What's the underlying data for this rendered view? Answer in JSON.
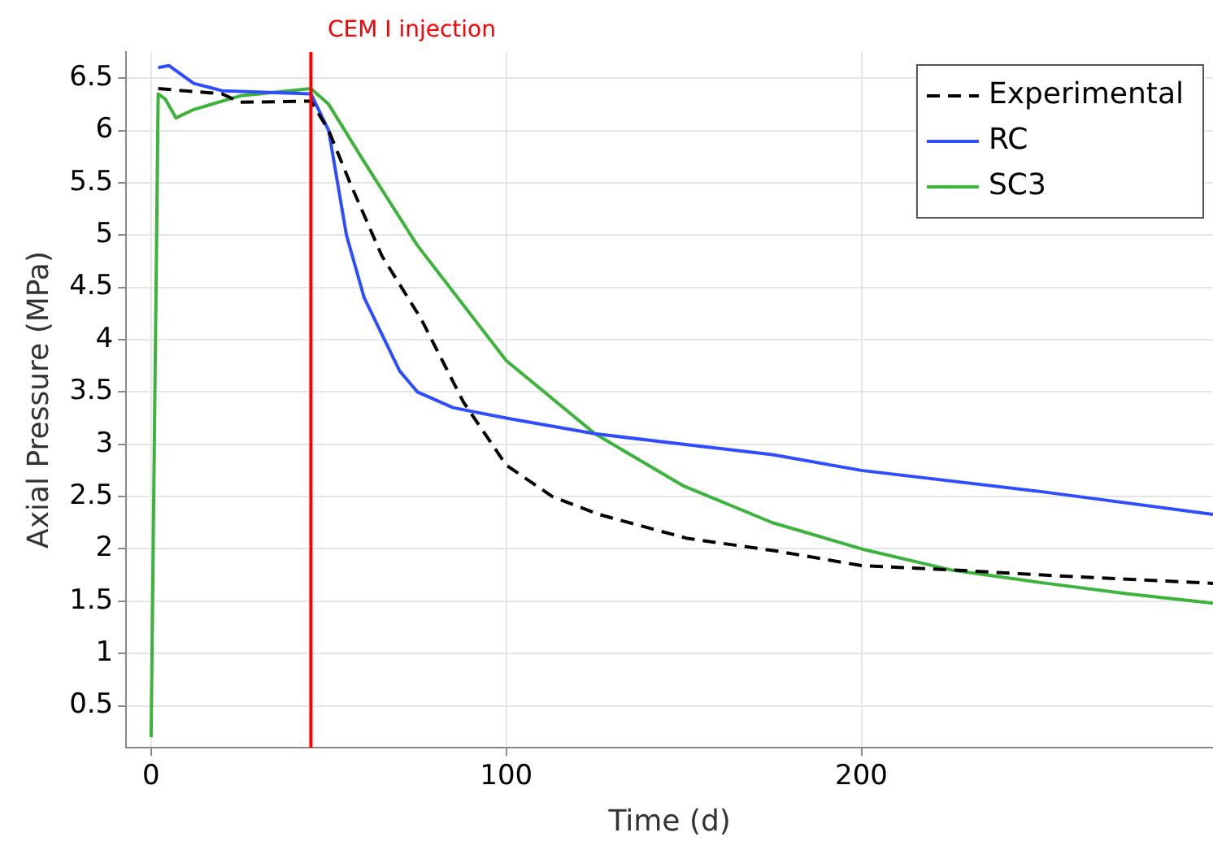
{
  "chart_data": {
    "type": "line",
    "xlabel": "Time (d)",
    "ylabel": "Axial Pressure (MPa)",
    "xlim": [
      -7,
      299
    ],
    "ylim": [
      0.1,
      6.75
    ],
    "xticks": [
      0,
      100,
      200
    ],
    "yticks": [
      0.5,
      1,
      1.5,
      2,
      2.5,
      3,
      3.5,
      4,
      4.5,
      5,
      5.5,
      6,
      6.5
    ],
    "grid": true,
    "legend": "top right",
    "marker": "none",
    "ref_lines": [
      {
        "axis": "x",
        "value": 45,
        "label": "CEM I injection",
        "color": "#ff0000"
      }
    ],
    "series": [
      {
        "name": "Experimental",
        "color": "#000000",
        "line_style": "dashed",
        "x": [
          2,
          20,
          25,
          45,
          50,
          56,
          65,
          76,
          88,
          100,
          113,
          126,
          151,
          176,
          200,
          225,
          251,
          299
        ],
        "values": [
          6.4,
          6.35,
          6.27,
          6.28,
          6.0,
          5.5,
          4.8,
          4.2,
          3.4,
          2.8,
          2.5,
          2.33,
          2.1,
          1.98,
          1.84,
          1.8,
          1.75,
          1.67
        ]
      },
      {
        "name": "RC",
        "color": "#2e4dff",
        "line_style": "solid",
        "x": [
          2,
          5,
          12,
          20,
          45,
          50,
          55,
          60,
          70,
          75,
          85,
          100,
          125,
          150,
          175,
          200,
          250,
          299
        ],
        "values": [
          6.6,
          6.62,
          6.45,
          6.38,
          6.35,
          6.0,
          5.0,
          4.4,
          3.7,
          3.5,
          3.35,
          3.25,
          3.1,
          3.0,
          2.9,
          2.75,
          2.55,
          2.33
        ]
      },
      {
        "name": "SC3",
        "color": "#3cb43c",
        "line_style": "solid",
        "x": [
          0,
          2,
          4,
          7,
          12,
          25,
          45,
          50,
          60,
          75,
          100,
          125,
          150,
          175,
          200,
          225,
          250,
          275,
          299
        ],
        "values": [
          0.2,
          6.35,
          6.3,
          6.12,
          6.2,
          6.33,
          6.4,
          6.25,
          5.7,
          4.9,
          3.8,
          3.1,
          2.6,
          2.25,
          2.0,
          1.8,
          1.68,
          1.57,
          1.48
        ]
      }
    ]
  }
}
